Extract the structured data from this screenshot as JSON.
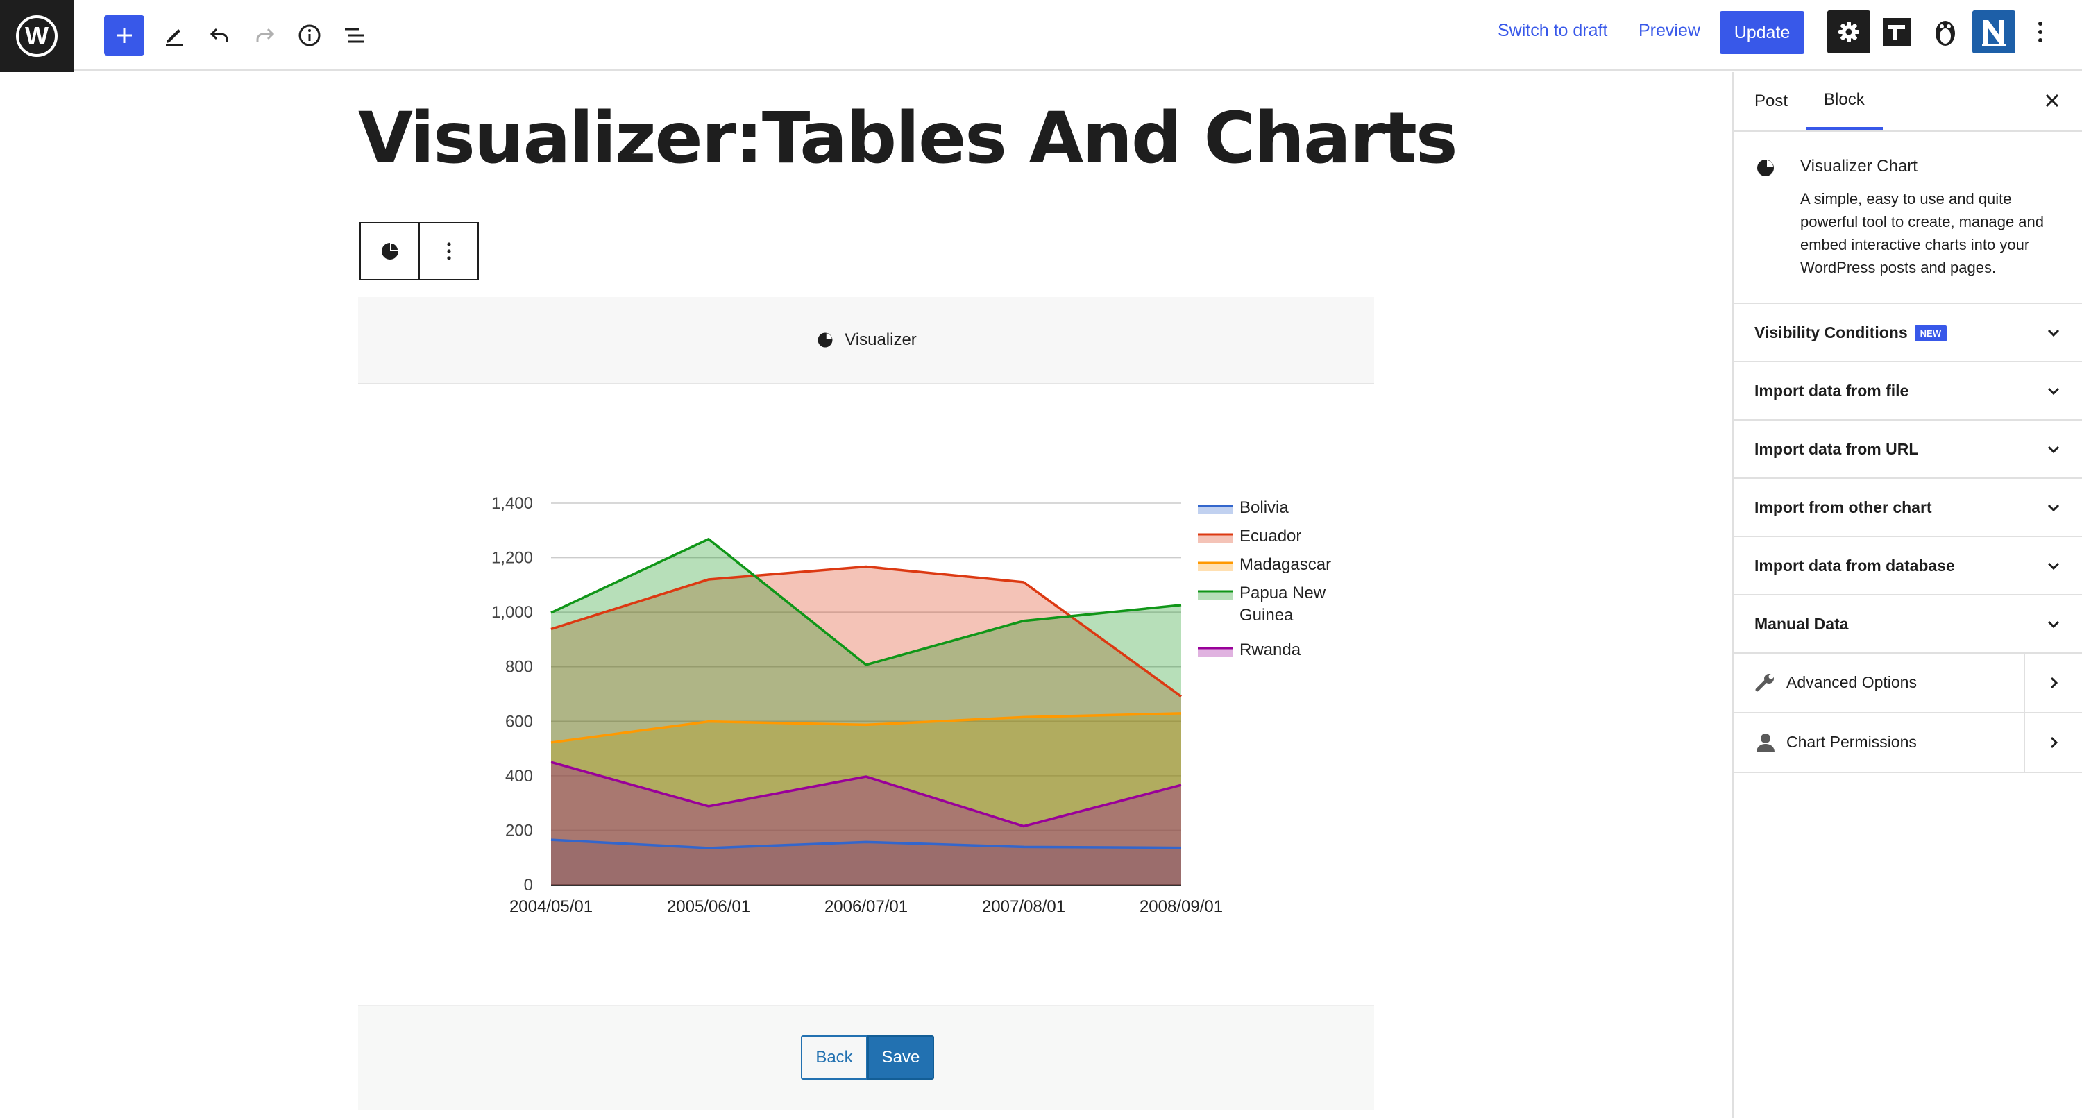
{
  "toolbar": {
    "switch_to_draft": "Switch to draft",
    "preview": "Preview",
    "update": "Update"
  },
  "post": {
    "title": "Visualizer:Tables And Charts"
  },
  "visualizer": {
    "header_label": "Visualizer",
    "back_label": "Back",
    "save_label": "Save"
  },
  "sidebar": {
    "tabs": [
      {
        "label": "Post"
      },
      {
        "label": "Block"
      }
    ],
    "active_tab": "Block",
    "block": {
      "title": "Visualizer Chart",
      "description": "A simple, easy to use and quite powerful tool to create, manage and embed interactive charts into your WordPress posts and pages."
    },
    "panels": [
      {
        "label": "Visibility Conditions",
        "badge": "NEW"
      },
      {
        "label": "Import data from file"
      },
      {
        "label": "Import data from URL"
      },
      {
        "label": "Import from other chart"
      },
      {
        "label": "Import data from database"
      },
      {
        "label": "Manual Data"
      }
    ],
    "nav_panels": [
      {
        "label": "Advanced Options",
        "icon": "wrench-icon"
      },
      {
        "label": "Chart Permissions",
        "icon": "user-icon"
      }
    ]
  },
  "chart_data": {
    "type": "area",
    "title": "",
    "xlabel": "",
    "ylabel": "",
    "x": [
      "2004/05/01",
      "2005/06/01",
      "2006/07/01",
      "2007/08/01",
      "2008/09/01"
    ],
    "ylim": [
      0,
      1400
    ],
    "yticks": [
      "0",
      "200",
      "400",
      "600",
      "800",
      "1,000",
      "1,200",
      "1,400"
    ],
    "grid": true,
    "legend": "right",
    "series": [
      {
        "name": "Bolivia",
        "color": "#3366cc",
        "values": [
          165,
          135,
          157,
          139,
          136
        ]
      },
      {
        "name": "Ecuador",
        "color": "#dc3912",
        "values": [
          938,
          1120,
          1167,
          1110,
          691
        ]
      },
      {
        "name": "Madagascar",
        "color": "#ff9900",
        "values": [
          522,
          599,
          587,
          615,
          629
        ]
      },
      {
        "name": "Papua New Guinea",
        "color": "#109618",
        "values": [
          998,
          1268,
          807,
          968,
          1026
        ]
      },
      {
        "name": "Rwanda",
        "color": "#990099",
        "values": [
          450,
          288,
          397,
          215,
          366
        ]
      }
    ]
  }
}
